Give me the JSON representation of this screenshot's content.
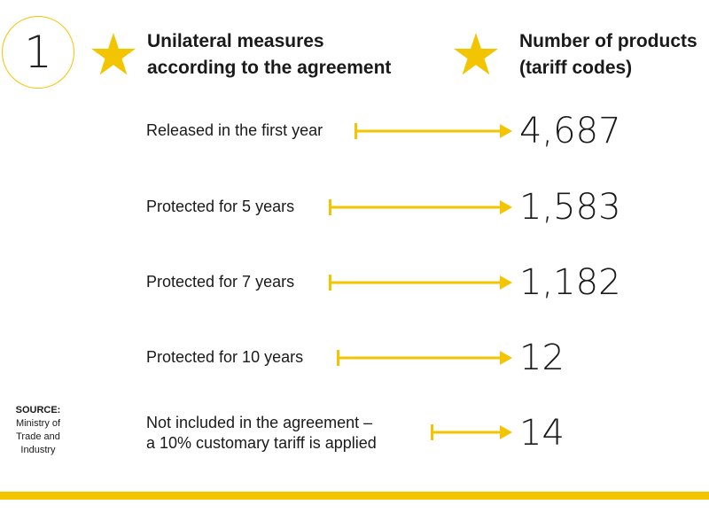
{
  "badge_number": "1",
  "header": {
    "left_lines": [
      "Unilateral measures",
      "according to the agreement"
    ],
    "right_lines": [
      "Number of products",
      "(tariff codes)"
    ]
  },
  "rows": [
    {
      "label_lines": [
        "Released in the first year"
      ],
      "value": "4,687"
    },
    {
      "label_lines": [
        "Protected for 5 years"
      ],
      "value": "1,583"
    },
    {
      "label_lines": [
        "Protected for 7 years"
      ],
      "value": "1,182"
    },
    {
      "label_lines": [
        "Protected for 10 years"
      ],
      "value": "12"
    },
    {
      "label_lines": [
        "Not included in the agreement –",
        "a 10% customary tariff is applied"
      ],
      "value": "14"
    }
  ],
  "source": {
    "title": "SOURCE:",
    "lines": [
      "Ministry of",
      "Trade and",
      "Industry"
    ]
  },
  "colors": {
    "accent": "#f2c500",
    "text": "#1a1a1a"
  },
  "icons": [
    "star-icon",
    "arrow-right-icon"
  ]
}
